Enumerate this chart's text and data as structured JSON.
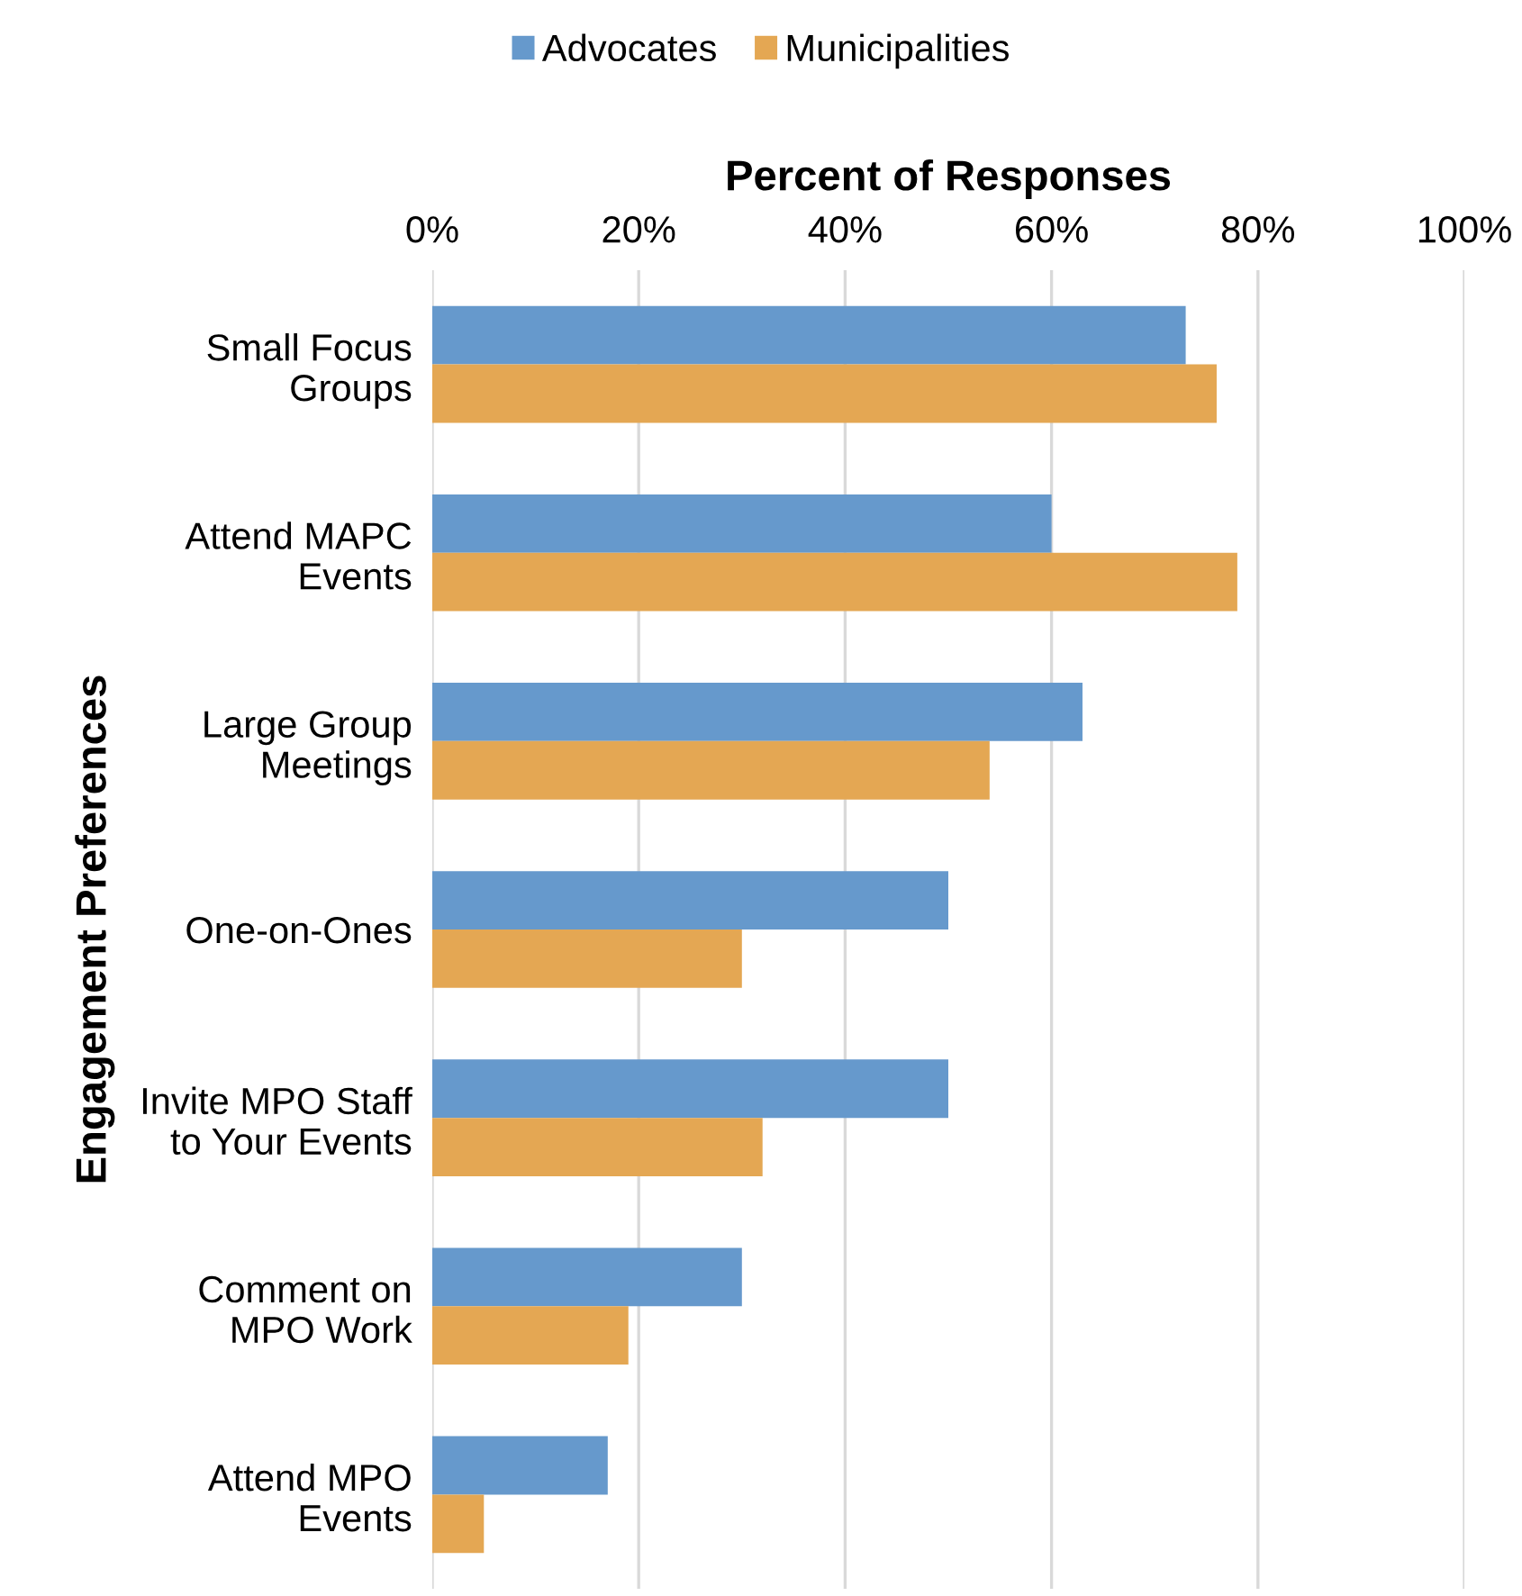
{
  "chart_data": {
    "type": "bar",
    "orientation": "horizontal",
    "xlabel": "Percent of Responses",
    "ylabel": "Engagement Preferences",
    "categories": [
      "Small Focus\nGroups",
      "Attend MAPC\nEvents",
      "Large Group\nMeetings",
      "One-on-Ones",
      "Invite MPO Staff\nto Your Events",
      "Comment on\nMPO Work",
      "Attend MPO\nEvents"
    ],
    "series": [
      {
        "name": "Advocates",
        "color": "#6699cc",
        "values": [
          73,
          60,
          63,
          50,
          50,
          30,
          17
        ]
      },
      {
        "name": "Municipalities",
        "color": "#e4a753",
        "values": [
          76,
          78,
          54,
          30,
          32,
          19,
          5
        ]
      }
    ],
    "xlim": [
      0,
      100
    ],
    "xticks": [
      {
        "value": 0,
        "label": "0%"
      },
      {
        "value": 20,
        "label": "20%"
      },
      {
        "value": 40,
        "label": "40%"
      },
      {
        "value": 60,
        "label": "60%"
      },
      {
        "value": 80,
        "label": "80%"
      },
      {
        "value": 100,
        "label": "100%"
      }
    ],
    "grid": "x",
    "legend": "top"
  }
}
